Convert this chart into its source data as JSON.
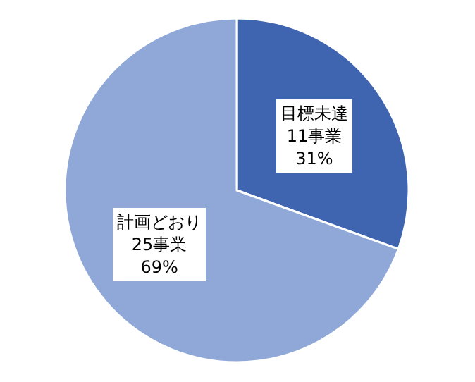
{
  "chart_data": {
    "type": "pie",
    "categories": [
      "目標未達",
      "計画どおり"
    ],
    "values": [
      11,
      25
    ],
    "value_labels": [
      "11事業\n31%",
      "25事業\n69%"
    ],
    "colors": [
      "#3f64b0",
      "#8fa8d8"
    ]
  }
}
